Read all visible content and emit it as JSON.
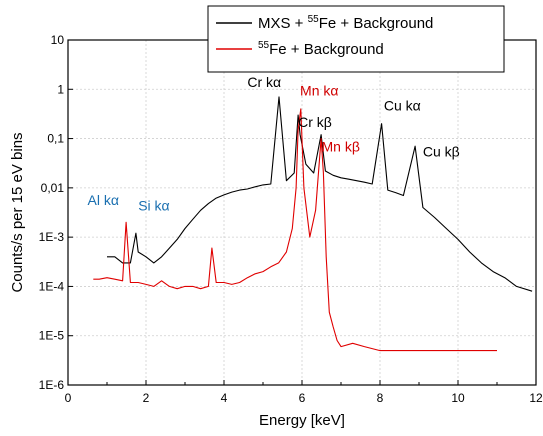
{
  "chart_data": {
    "type": "line",
    "xlabel": "Energy [keV]",
    "ylabel": "Counts/s per 15 eV bins",
    "xlim": [
      0,
      12
    ],
    "ylim": [
      1e-06,
      10
    ],
    "yscale": "log",
    "grid": true,
    "legend_position": "top-right",
    "x_ticks": [
      "0",
      "2",
      "4",
      "6",
      "8",
      "10",
      "12"
    ],
    "y_ticks": [
      "1E-6",
      "1E-5",
      "1E-4",
      "1E-3",
      "0,01",
      "0,1",
      "1",
      "10"
    ],
    "legend": [
      {
        "prefix": "MXS + ",
        "sup": "55",
        "suffix": "Fe + Background",
        "color": "#000000"
      },
      {
        "prefix": "",
        "sup": "55",
        "suffix": "Fe + Background",
        "color": "#e00000"
      }
    ],
    "series": [
      {
        "color": "#000000",
        "x": [
          1.0,
          1.2,
          1.4,
          1.6,
          1.74,
          1.8,
          2.0,
          2.2,
          2.4,
          2.6,
          2.8,
          3.0,
          3.2,
          3.4,
          3.6,
          3.8,
          4.0,
          4.2,
          4.4,
          4.6,
          4.8,
          5.0,
          5.2,
          5.41,
          5.6,
          5.8,
          5.9,
          5.95,
          6.1,
          6.3,
          6.49,
          6.6,
          6.8,
          7.0,
          7.2,
          7.4,
          7.6,
          7.8,
          8.04,
          8.2,
          8.4,
          8.6,
          8.9,
          9.1,
          9.4,
          9.7,
          10.0,
          10.3,
          10.6,
          10.9,
          11.2,
          11.5,
          11.9
        ],
        "y": [
          0.0004,
          0.0004,
          0.0003,
          0.0003,
          0.0012,
          0.0005,
          0.0004,
          0.0003,
          0.0004,
          0.0006,
          0.0009,
          0.0015,
          0.0023,
          0.0035,
          0.0048,
          0.0062,
          0.0072,
          0.0082,
          0.009,
          0.0095,
          0.0105,
          0.0115,
          0.012,
          0.7,
          0.014,
          0.02,
          0.3,
          0.12,
          0.03,
          0.02,
          0.12,
          0.022,
          0.018,
          0.016,
          0.015,
          0.014,
          0.013,
          0.012,
          0.2,
          0.009,
          0.008,
          0.007,
          0.07,
          0.004,
          0.0025,
          0.0015,
          0.0009,
          0.0005,
          0.0003,
          0.0002,
          0.00015,
          0.0001,
          8e-05
        ]
      },
      {
        "color": "#e00000",
        "x": [
          0.65,
          0.8,
          1.0,
          1.2,
          1.4,
          1.49,
          1.6,
          1.8,
          2.0,
          2.2,
          2.4,
          2.6,
          2.8,
          3.0,
          3.2,
          3.4,
          3.6,
          3.69,
          3.8,
          4.0,
          4.2,
          4.4,
          4.6,
          4.8,
          5.0,
          5.2,
          5.4,
          5.6,
          5.75,
          5.85,
          5.9,
          5.97,
          6.05,
          6.2,
          6.35,
          6.49,
          6.55,
          6.62,
          6.7,
          6.8,
          6.9,
          7.0,
          7.3,
          7.6,
          8.0,
          8.5,
          9.0,
          9.5,
          10.0,
          10.5,
          11.0
        ],
        "y": [
          0.00014,
          0.00014,
          0.00015,
          0.00014,
          0.00013,
          0.002,
          0.00012,
          0.00012,
          0.00011,
          0.0001,
          0.00013,
          0.0001,
          9e-05,
          0.0001,
          0.0001,
          9e-05,
          0.0001,
          0.0006,
          0.00012,
          0.00012,
          0.00011,
          0.00012,
          0.00015,
          0.00018,
          0.0002,
          0.00025,
          0.0003,
          0.0005,
          0.0015,
          0.01,
          0.15,
          0.4,
          0.01,
          0.001,
          0.0035,
          0.1,
          0.02,
          0.0004,
          3e-05,
          1.5e-05,
          8e-06,
          6e-06,
          7e-06,
          6e-06,
          5e-06,
          5e-06,
          5e-06,
          5e-06,
          5e-06,
          5e-06,
          5e-06
        ]
      }
    ],
    "annotations": [
      {
        "text": "Cr kα",
        "x": 4.6,
        "y": 1.1,
        "color": "#000000"
      },
      {
        "text": "Mn kα",
        "x": 5.95,
        "y": 0.75,
        "color": "#d00000"
      },
      {
        "text": "Cr kβ",
        "x": 5.9,
        "y": 0.17,
        "color": "#000000"
      },
      {
        "text": "Mn kβ",
        "x": 6.5,
        "y": 0.055,
        "color": "#d00000"
      },
      {
        "text": "Cu kα",
        "x": 8.1,
        "y": 0.37,
        "color": "#000000"
      },
      {
        "text": "Cu kβ",
        "x": 9.1,
        "y": 0.043,
        "color": "#000000"
      },
      {
        "text": "Al kα",
        "x": 0.5,
        "y": 0.0045,
        "color": "#1a6fb0"
      },
      {
        "text": "Si kα",
        "x": 1.8,
        "y": 0.0035,
        "color": "#1a6fb0"
      }
    ]
  }
}
